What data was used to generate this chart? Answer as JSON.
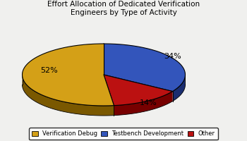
{
  "title": "Effort Allocation of Dedicated Verification\nEngineers by Type of Activity",
  "slices": [
    34,
    14,
    52
  ],
  "labels": [
    "34%",
    "14%",
    "52%"
  ],
  "colors": [
    "#3355BB",
    "#BB1111",
    "#D4A017"
  ],
  "shadow_colors": [
    "#1A2D70",
    "#770000",
    "#7A5800"
  ],
  "legend_labels": [
    "Verification Debug",
    "Testbench Development",
    "Other"
  ],
  "legend_colors": [
    "#D4A017",
    "#3355BB",
    "#BB1111"
  ],
  "title_fontsize": 7.5,
  "label_fontsize": 8,
  "background_color": "#f0f0ee"
}
